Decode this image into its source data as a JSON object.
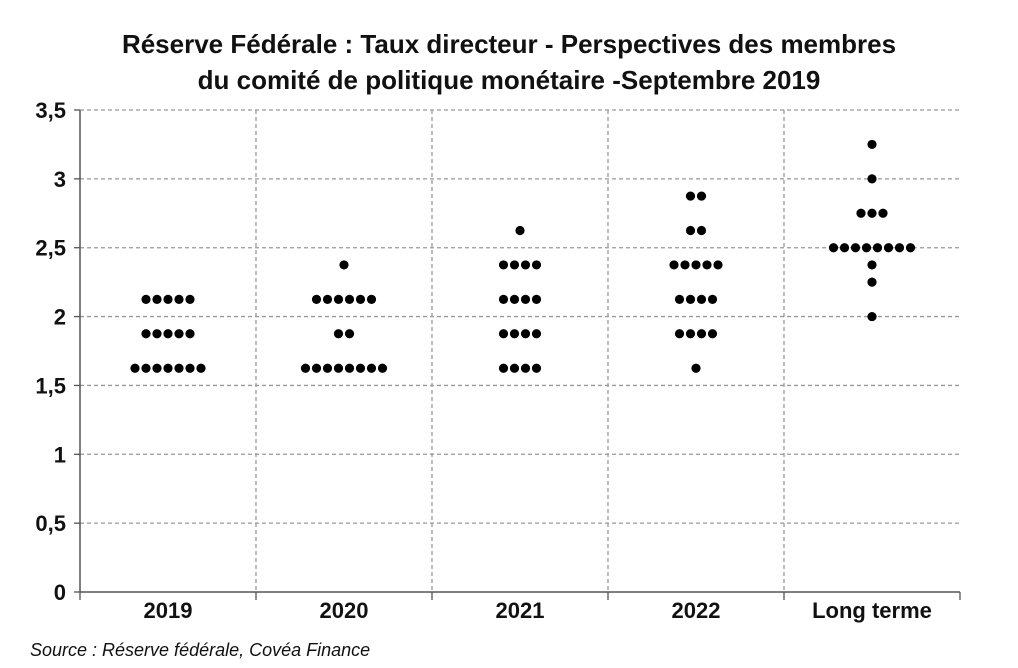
{
  "chart_data": {
    "type": "scatter",
    "title_lines": [
      "Réserve Fédérale : Taux directeur - Perspectives des membres",
      "du comité de politique monétaire -Septembre 2019"
    ],
    "categories": [
      "2019",
      "2020",
      "2021",
      "2022",
      "Long terme"
    ],
    "y_ticks": [
      "0",
      "0,5",
      "1",
      "1,5",
      "2",
      "2,5",
      "3",
      "3,5"
    ],
    "ylim": [
      0,
      3.5
    ],
    "grid": true,
    "points": [
      {
        "category": "2019",
        "rows": [
          {
            "y": 1.625,
            "count": 7
          },
          {
            "y": 1.875,
            "count": 5
          },
          {
            "y": 2.125,
            "count": 5
          }
        ]
      },
      {
        "category": "2020",
        "rows": [
          {
            "y": 1.625,
            "count": 8
          },
          {
            "y": 1.875,
            "count": 2
          },
          {
            "y": 2.125,
            "count": 6
          },
          {
            "y": 2.375,
            "count": 1
          }
        ]
      },
      {
        "category": "2021",
        "rows": [
          {
            "y": 1.625,
            "count": 4
          },
          {
            "y": 1.875,
            "count": 4
          },
          {
            "y": 2.125,
            "count": 4
          },
          {
            "y": 2.375,
            "count": 4
          },
          {
            "y": 2.625,
            "count": 1
          }
        ]
      },
      {
        "category": "2022",
        "rows": [
          {
            "y": 1.625,
            "count": 1
          },
          {
            "y": 1.875,
            "count": 4
          },
          {
            "y": 2.125,
            "count": 4
          },
          {
            "y": 2.375,
            "count": 5
          },
          {
            "y": 2.625,
            "count": 2
          },
          {
            "y": 2.875,
            "count": 2
          }
        ]
      },
      {
        "category": "Long terme",
        "rows": [
          {
            "y": 2.0,
            "count": 1
          },
          {
            "y": 2.25,
            "count": 1
          },
          {
            "y": 2.375,
            "count": 1
          },
          {
            "y": 2.5,
            "count": 8
          },
          {
            "y": 2.75,
            "count": 3
          },
          {
            "y": 3.0,
            "count": 1
          },
          {
            "y": 3.25,
            "count": 1
          }
        ]
      }
    ]
  },
  "source": "Source : Réserve fédérale, Covéa Finance"
}
